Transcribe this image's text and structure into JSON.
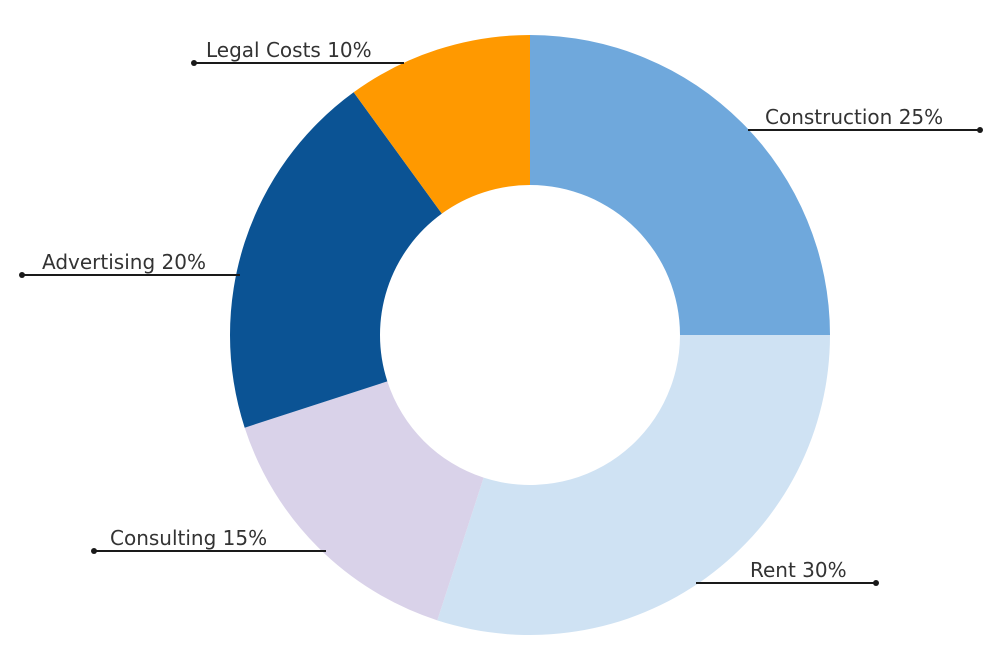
{
  "chart_data": {
    "type": "pie",
    "variant": "donut",
    "title": "",
    "legend": "none",
    "unit": "%",
    "slices": [
      {
        "category": "Construction",
        "value": 25,
        "label": "Construction 25%",
        "color": "#6fa8dc"
      },
      {
        "category": "Rent",
        "value": 30,
        "label": "Rent 30%",
        "color": "#cfe2f3"
      },
      {
        "category": "Consulting",
        "value": 15,
        "label": "Consulting 15%",
        "color": "#d9d2e9"
      },
      {
        "category": "Advertising",
        "value": 20,
        "label": "Advertising 20%",
        "color": "#0b5394"
      },
      {
        "category": "Legal Costs",
        "value": 10,
        "label": "Legal Costs 10%",
        "color": "#ff9900"
      }
    ]
  }
}
